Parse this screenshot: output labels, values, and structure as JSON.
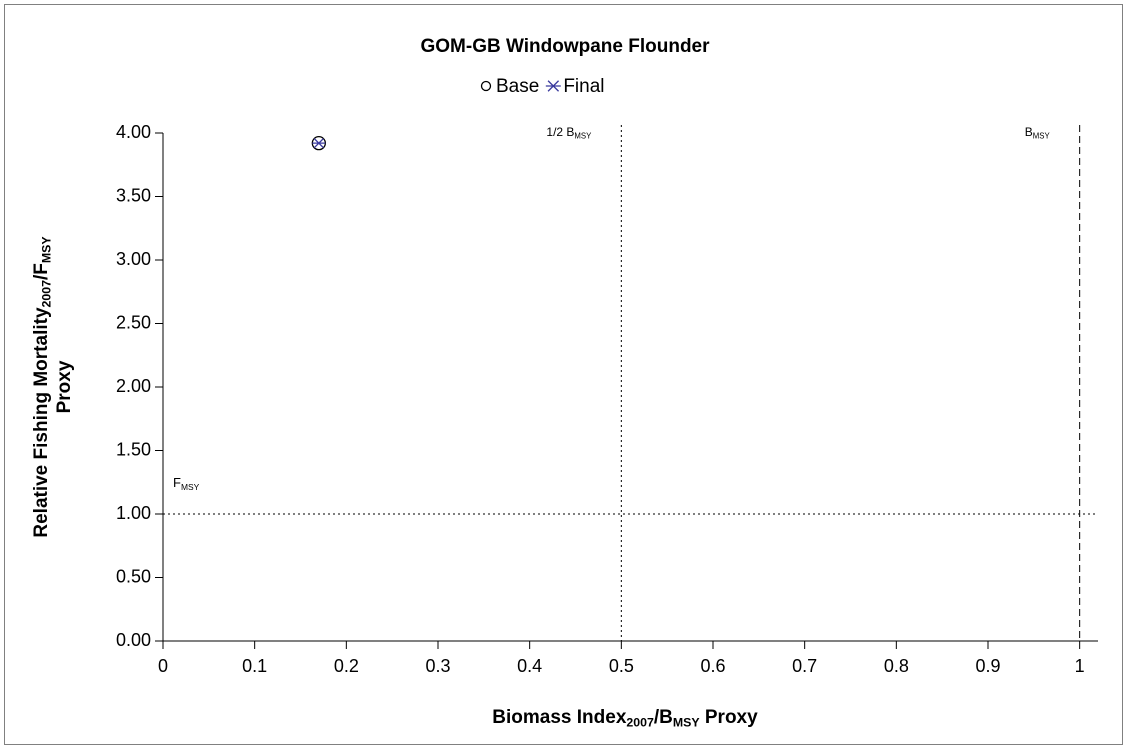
{
  "chart_data": {
    "type": "scatter",
    "title": "GOM-GB Windowpane Flounder",
    "xlabel": [
      [
        {
          "text": "Biomass Index"
        },
        {
          "text": "2007",
          "sub": true
        },
        {
          "text": "/B"
        },
        {
          "text": "MSY",
          "sub": true
        },
        {
          "text": " Proxy"
        }
      ]
    ],
    "ylabel": [
      [
        {
          "text": "Relative Fishing Mortality"
        },
        {
          "text": "2007",
          "sub": true
        },
        {
          "text": "/F"
        },
        {
          "text": "MSY",
          "sub": true
        }
      ],
      [
        {
          "text": "Proxy"
        }
      ]
    ],
    "series": [
      {
        "name": "Base",
        "color": "#000000",
        "marker": "circle",
        "x": [
          0.17
        ],
        "values": [
          3.92
        ]
      },
      {
        "name": "Final",
        "color": "#3b3b9e",
        "marker": "asterisk",
        "x": [
          0.17
        ],
        "values": [
          3.92
        ]
      }
    ],
    "xlim": [
      0,
      1.02
    ],
    "ylim": [
      0,
      4
    ],
    "xticks": [
      0,
      0.1,
      0.2,
      0.3,
      0.4,
      0.5,
      0.6,
      0.7,
      0.8,
      0.9,
      1
    ],
    "yticks": [
      {
        "value": 0,
        "label": "0.00"
      },
      {
        "value": 0.5,
        "label": "0.50"
      },
      {
        "value": 1,
        "label": "1.00"
      },
      {
        "value": 1.5,
        "label": "1.50"
      },
      {
        "value": 2,
        "label": "2.00"
      },
      {
        "value": 2.5,
        "label": "2.50"
      },
      {
        "value": 3,
        "label": "3.00"
      },
      {
        "value": 3.5,
        "label": "3.50"
      },
      {
        "value": 4,
        "label": "4.00"
      }
    ],
    "reference_lines": [
      {
        "axis": "x",
        "value": 0.5,
        "style": "dotted",
        "label": [
          {
            "text": "1/2 B"
          },
          {
            "text": "MSY",
            "sub": true
          }
        ]
      },
      {
        "axis": "x",
        "value": 1,
        "style": "dashed",
        "label": [
          {
            "text": "B"
          },
          {
            "text": "MSY",
            "sub": true
          }
        ]
      },
      {
        "axis": "y",
        "value": 1,
        "style": "dotted",
        "label": [
          {
            "text": "F"
          },
          {
            "text": "MSY",
            "sub": true
          }
        ]
      }
    ],
    "legend": "top"
  }
}
